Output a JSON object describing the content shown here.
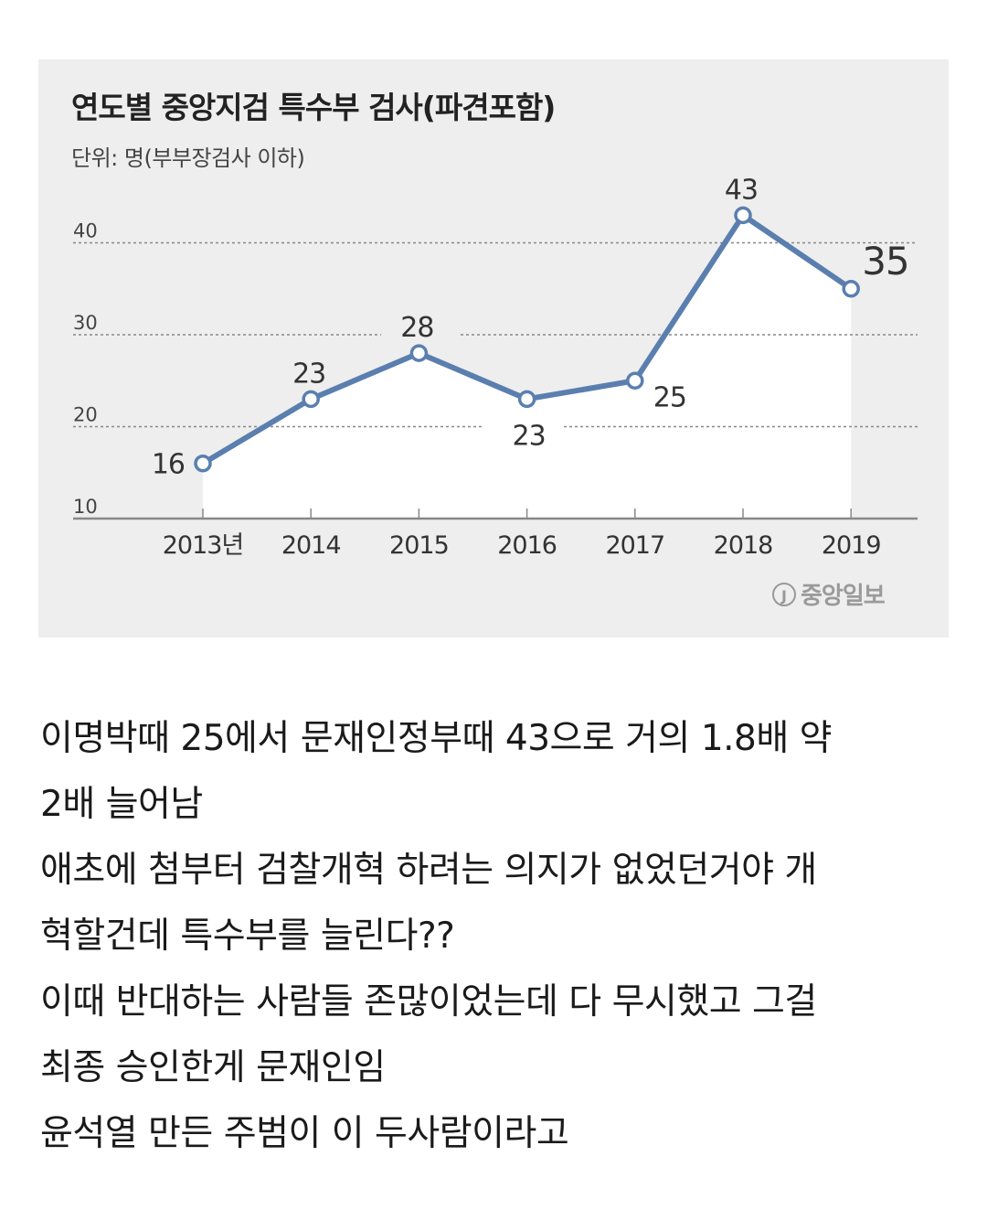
{
  "chart_data": {
    "type": "line",
    "title": "연도별 중앙지검 특수부 검사(파견포함)",
    "subtitle": "단위: 명(부부장검사 이하)",
    "categories": [
      "2013년",
      "2014",
      "2015",
      "2016",
      "2017",
      "2018",
      "2019"
    ],
    "values": [
      16,
      23,
      28,
      23,
      25,
      43,
      35
    ],
    "value_labels": [
      "16",
      "23",
      "28",
      "23",
      "25",
      "43",
      "35"
    ],
    "label_positions": [
      "left",
      "above",
      "above",
      "below",
      "right",
      "above",
      "above-right"
    ],
    "y_ticks": [
      "10",
      "20",
      "30",
      "40"
    ],
    "ylim": [
      10,
      45
    ],
    "grid": true,
    "line_color": "#5a7faf",
    "source": "중앙일보"
  },
  "caption": {
    "lines": [
      "이명박때 25에서 문재인정부때 43으로 거의 1.8배 약",
      "2배 늘어남",
      "애초에 첨부터 검찰개혁 하려는 의지가 없었던거야 개",
      "혁할건데 특수부를 늘린다??",
      "이때 반대하는 사람들 존많이었는데 다 무시했고 그걸",
      "최종 승인한게 문재인임",
      "윤석열 만든 주범이 이 두사람이라고"
    ]
  }
}
